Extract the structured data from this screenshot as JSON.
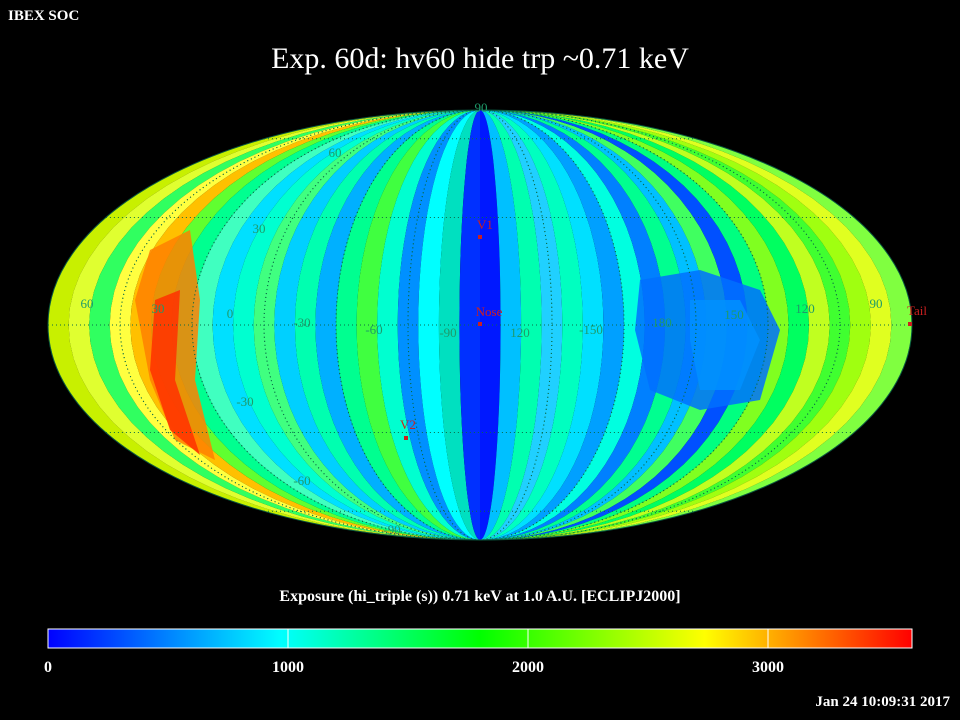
{
  "header": {
    "organization": "IBEX SOC",
    "title": "Exp.   60d: hv60 hide trp ~0.71 keV"
  },
  "map": {
    "projection": "mollweide",
    "latitude_labels": [
      "90",
      "60",
      "30",
      "-30",
      "-60",
      "-90"
    ],
    "longitude_labels": [
      "60",
      "30",
      "0",
      "-30",
      "-60",
      "-90",
      "120",
      "-150",
      "180",
      "150",
      "120",
      "90"
    ],
    "markers": {
      "v1": "V1",
      "nose": "Nose",
      "v2": "V2",
      "tail": "Tail"
    },
    "marker_color": "#cc2020",
    "grid_label_color": "#1e9a6a"
  },
  "colorbar": {
    "caption": "Exposure (hi_triple (s))  0.71 keV at 1.0 A.U. [ECLIPJ2000]",
    "min": 0,
    "max": 3600,
    "tick_labels": [
      "0",
      "1000",
      "2000",
      "3000"
    ],
    "colors": [
      "#0000ff",
      "#00ffff",
      "#00ff00",
      "#ffff00",
      "#ff0000"
    ]
  },
  "footer": {
    "timestamp": "Jan 24 10:09:31 2017"
  }
}
